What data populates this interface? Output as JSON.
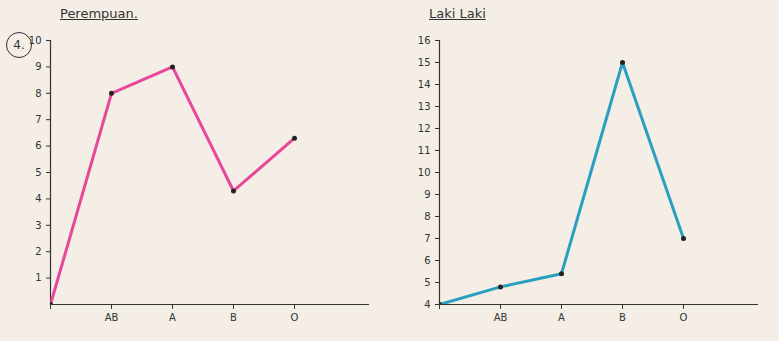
{
  "chart_data": [
    {
      "type": "line",
      "title": "Perempuan.",
      "annotation": "4.",
      "categories": [
        null,
        "AB",
        "A",
        "B",
        "O"
      ],
      "values": [
        0,
        8,
        9,
        4.3,
        6.3
      ],
      "color": "#e8479a",
      "marker": "circle",
      "ylim": [
        0,
        10
      ],
      "yticks": [
        1,
        2,
        3,
        4,
        5,
        6,
        7,
        8,
        9,
        10
      ]
    },
    {
      "type": "line",
      "title": "Laki Laki",
      "categories": [
        null,
        "AB",
        "A",
        "B",
        "O"
      ],
      "values": [
        4,
        4.8,
        5.4,
        15,
        7
      ],
      "color": "#2a9fc0",
      "marker": "circle",
      "ylim": [
        4,
        16
      ],
      "yticks": [
        4,
        5,
        6,
        7,
        8,
        9,
        10,
        11,
        12,
        13,
        14,
        15,
        16
      ]
    }
  ]
}
